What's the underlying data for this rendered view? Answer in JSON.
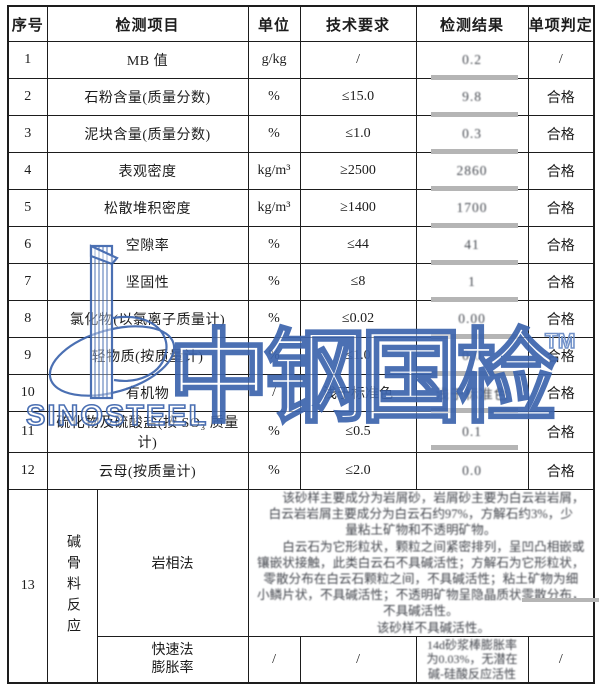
{
  "header": {
    "columns": [
      "序号",
      "检测项目",
      "单位",
      "技术要求",
      "检测结果",
      "单项判定"
    ]
  },
  "rows": [
    {
      "no": "1",
      "item": "MB 值",
      "unit": "g/kg",
      "requirement": "/",
      "result": "0.2",
      "judgment": "/"
    },
    {
      "no": "2",
      "item": "石粉含量(质量分数)",
      "unit": "%",
      "requirement": "≤15.0",
      "result": "9.8",
      "judgment": "合格"
    },
    {
      "no": "3",
      "item": "泥块含量(质量分数)",
      "unit": "%",
      "requirement": "≤1.0",
      "result": "0.3",
      "judgment": "合格"
    },
    {
      "no": "4",
      "item": "表观密度",
      "unit": "kg/m³",
      "requirement": "≥2500",
      "result": "2860",
      "judgment": "合格"
    },
    {
      "no": "5",
      "item": "松散堆积密度",
      "unit": "kg/m³",
      "requirement": "≥1400",
      "result": "1700",
      "judgment": "合格"
    },
    {
      "no": "6",
      "item": "空隙率",
      "unit": "%",
      "requirement": "≤44",
      "result": "41",
      "judgment": "合格"
    },
    {
      "no": "7",
      "item": "坚固性",
      "unit": "%",
      "requirement": "≤8",
      "result": "1",
      "judgment": "合格"
    },
    {
      "no": "8",
      "item": "氯化物(以氯离子质量计)",
      "unit": "%",
      "requirement": "≤0.02",
      "result": "0.00",
      "judgment": "合格"
    },
    {
      "no": "9",
      "item": "轻物质(按质量计)",
      "unit": "%",
      "requirement": "≤1.0",
      "result": "0.0",
      "judgment": "合格"
    },
    {
      "no": "10",
      "item": "有机物",
      "unit": "/",
      "requirement": "浅于标准色",
      "result": "浅于标准色",
      "judgment": "合格"
    },
    {
      "no": "11",
      "item": "硫化物及硫酸盐(按 SO₃ 质量计)",
      "unit": "%",
      "requirement": "≤0.5",
      "result": "0.1",
      "judgment": "合格"
    },
    {
      "no": "12",
      "item": "云母(按质量计)",
      "unit": "%",
      "requirement": "≤2.0",
      "result": "0.0",
      "judgment": "合格"
    }
  ],
  "row13": {
    "no": "13",
    "group": "碱骨料反应",
    "petrographic": {
      "method": "岩相法",
      "result_lines": [
        "　　该砂样主要成分为岩屑砂，岩屑砂主要为白云岩岩屑，",
        "白云岩岩屑主要成分为白云石约97%，方解石约3%，少",
        "量粘土矿物和不透明矿物。",
        "　　白云石为它形粒状，颗粒之间紧密排列，呈凹凸相嵌或",
        "镶嵌状接触，此类白云石不具碱活性；方解石为它形粒状，",
        "零散分布在白云石颗粒之间，不具碱活性；粘土矿物为细",
        "小鳞片状，不具碱活性；不透明矿物呈隐晶质状零散分布，",
        "不具碱活性。",
        "　　该砂样不具碱活性。"
      ]
    },
    "rapid": {
      "method_lines": [
        "快速法",
        "膨胀率"
      ],
      "unit": "/",
      "requirement": "/",
      "result_lines": [
        "14d砂浆棒膨胀率",
        "为0.03%，无潜在",
        "碱-硅酸反应活性"
      ],
      "judgment": "/"
    }
  },
  "watermark": {
    "brand": "SINOSTEEL",
    "cn_text": "中钢国检",
    "tm": "TM",
    "color": "#3c64ad"
  }
}
